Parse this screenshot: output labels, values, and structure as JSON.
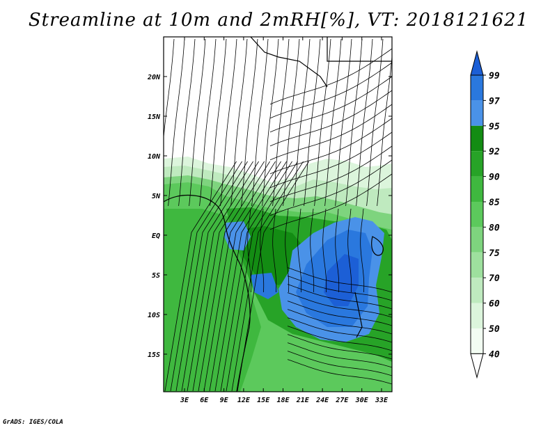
{
  "title": "Streamline at 10m and 2mRH[%], VT: 2018121621",
  "credit": "GrADS: IGES/COLA",
  "map": {
    "lat_labels": [
      "20N",
      "15N",
      "10N",
      "5N",
      "EQ",
      "5S",
      "10S",
      "15S"
    ],
    "lon_labels": [
      "3E",
      "6E",
      "9E",
      "12E",
      "15E",
      "18E",
      "21E",
      "24E",
      "27E",
      "30E",
      "33E"
    ]
  },
  "colorbar": {
    "levels": [
      "99",
      "97",
      "95",
      "92",
      "90",
      "85",
      "80",
      "75",
      "70",
      "60",
      "50",
      "40"
    ],
    "colors": [
      "#1c5fd6",
      "#2a78de",
      "#4a92e8",
      "#138c13",
      "#27a327",
      "#3fb83f",
      "#5cc95c",
      "#7ed47e",
      "#9ee09e",
      "#bfeabf",
      "#dcf5dc",
      "#f2fcf2"
    ],
    "overflow_top_color": "#1c5fd6",
    "underflow_bottom_color": "#ffffff"
  }
}
